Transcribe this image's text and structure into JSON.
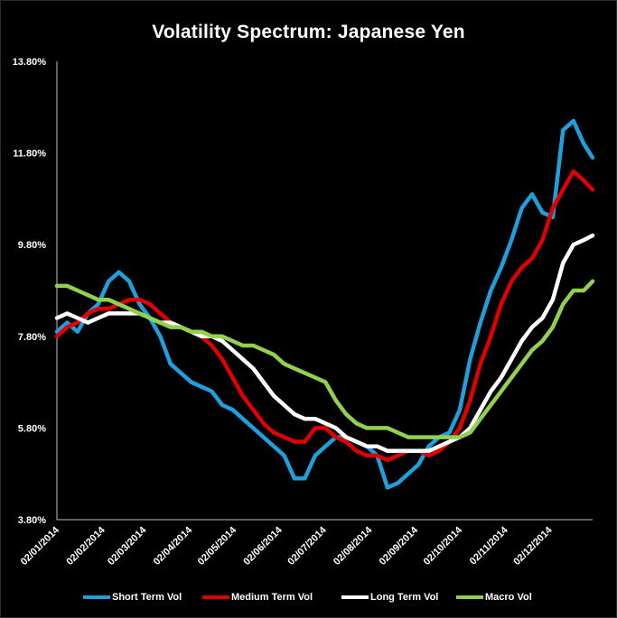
{
  "chart_data": {
    "type": "line",
    "title": "Volatility Spectrum: Japanese Yen",
    "xlabel": "",
    "ylabel": "",
    "y_ticks": [
      "13.80%",
      "11.80%",
      "9.80%",
      "7.80%",
      "5.80%",
      "3.80%"
    ],
    "ylim": [
      3.8,
      13.8
    ],
    "x_ticks": [
      "02/01/2014",
      "02/02/2014",
      "02/03/2014",
      "02/04/2014",
      "02/05/2014",
      "02/06/2014",
      "02/07/2014",
      "02/08/2014",
      "02/09/2014",
      "02/10/2014",
      "02/11/2014",
      "02/12/2014"
    ],
    "x_start": "02/01/2014",
    "x_end": "31/12/2014",
    "grid": false,
    "legend_position": "bottom",
    "x": [
      "02/01/2014",
      "09/01/2014",
      "16/01/2014",
      "23/01/2014",
      "30/01/2014",
      "06/02/2014",
      "13/02/2014",
      "20/02/2014",
      "27/02/2014",
      "06/03/2014",
      "13/03/2014",
      "20/03/2014",
      "27/03/2014",
      "03/04/2014",
      "10/04/2014",
      "17/04/2014",
      "24/04/2014",
      "01/05/2014",
      "08/05/2014",
      "15/05/2014",
      "22/05/2014",
      "29/05/2014",
      "05/06/2014",
      "12/06/2014",
      "19/06/2014",
      "26/06/2014",
      "03/07/2014",
      "10/07/2014",
      "17/07/2014",
      "24/07/2014",
      "31/07/2014",
      "07/08/2014",
      "14/08/2014",
      "21/08/2014",
      "28/08/2014",
      "04/09/2014",
      "11/09/2014",
      "18/09/2014",
      "25/09/2014",
      "02/10/2014",
      "09/10/2014",
      "16/10/2014",
      "23/10/2014",
      "30/10/2014",
      "06/11/2014",
      "13/11/2014",
      "20/11/2014",
      "27/11/2014",
      "04/12/2014",
      "11/12/2014",
      "18/12/2014",
      "25/12/2014",
      "31/12/2014"
    ],
    "series": [
      {
        "name": "Short Term Vol",
        "color": "#1ea0dc",
        "values": [
          7.9,
          8.1,
          7.9,
          8.3,
          8.5,
          9.0,
          9.2,
          9.0,
          8.5,
          8.2,
          7.8,
          7.2,
          7.0,
          6.8,
          6.7,
          6.6,
          6.3,
          6.2,
          6.0,
          5.8,
          5.6,
          5.4,
          5.2,
          4.7,
          4.7,
          5.2,
          5.4,
          5.6,
          5.6,
          5.5,
          5.4,
          5.2,
          4.5,
          4.6,
          4.8,
          5.0,
          5.4,
          5.6,
          5.7,
          6.2,
          7.3,
          8.1,
          8.8,
          9.3,
          9.9,
          10.6,
          10.9,
          10.5,
          10.4,
          12.3,
          12.5,
          12.0,
          11.7
        ]
      },
      {
        "name": "Medium Term Vol",
        "color": "#e00000",
        "values": [
          7.8,
          8.0,
          8.1,
          8.3,
          8.4,
          8.4,
          8.5,
          8.6,
          8.6,
          8.5,
          8.3,
          8.1,
          8.0,
          7.9,
          7.8,
          7.6,
          7.3,
          6.9,
          6.5,
          6.2,
          5.9,
          5.7,
          5.6,
          5.5,
          5.5,
          5.8,
          5.8,
          5.6,
          5.5,
          5.3,
          5.2,
          5.2,
          5.1,
          5.2,
          5.3,
          5.3,
          5.2,
          5.3,
          5.5,
          5.8,
          6.4,
          7.2,
          7.8,
          8.5,
          9.0,
          9.3,
          9.5,
          9.9,
          10.6,
          11.0,
          11.4,
          11.2,
          11.0
        ]
      },
      {
        "name": "Long Term Vol",
        "color": "#ffffff",
        "values": [
          8.2,
          8.3,
          8.2,
          8.1,
          8.2,
          8.3,
          8.3,
          8.3,
          8.3,
          8.2,
          8.1,
          8.1,
          8.0,
          7.9,
          7.8,
          7.8,
          7.7,
          7.5,
          7.3,
          7.1,
          6.8,
          6.5,
          6.3,
          6.1,
          6.0,
          6.0,
          5.9,
          5.8,
          5.6,
          5.5,
          5.4,
          5.4,
          5.3,
          5.3,
          5.3,
          5.3,
          5.3,
          5.4,
          5.5,
          5.6,
          5.8,
          6.2,
          6.6,
          6.9,
          7.3,
          7.7,
          8.0,
          8.2,
          8.6,
          9.4,
          9.8,
          9.9,
          10.0
        ]
      },
      {
        "name": "Macro Vol",
        "color": "#92d050",
        "values": [
          8.9,
          8.9,
          8.8,
          8.7,
          8.6,
          8.6,
          8.5,
          8.4,
          8.3,
          8.2,
          8.1,
          8.0,
          8.0,
          7.9,
          7.9,
          7.8,
          7.8,
          7.7,
          7.6,
          7.6,
          7.5,
          7.4,
          7.2,
          7.1,
          7.0,
          6.9,
          6.8,
          6.4,
          6.1,
          5.9,
          5.8,
          5.8,
          5.8,
          5.7,
          5.6,
          5.6,
          5.6,
          5.6,
          5.6,
          5.6,
          5.7,
          6.0,
          6.3,
          6.6,
          6.9,
          7.2,
          7.5,
          7.7,
          8.0,
          8.5,
          8.8,
          8.8,
          9.0
        ]
      }
    ]
  }
}
